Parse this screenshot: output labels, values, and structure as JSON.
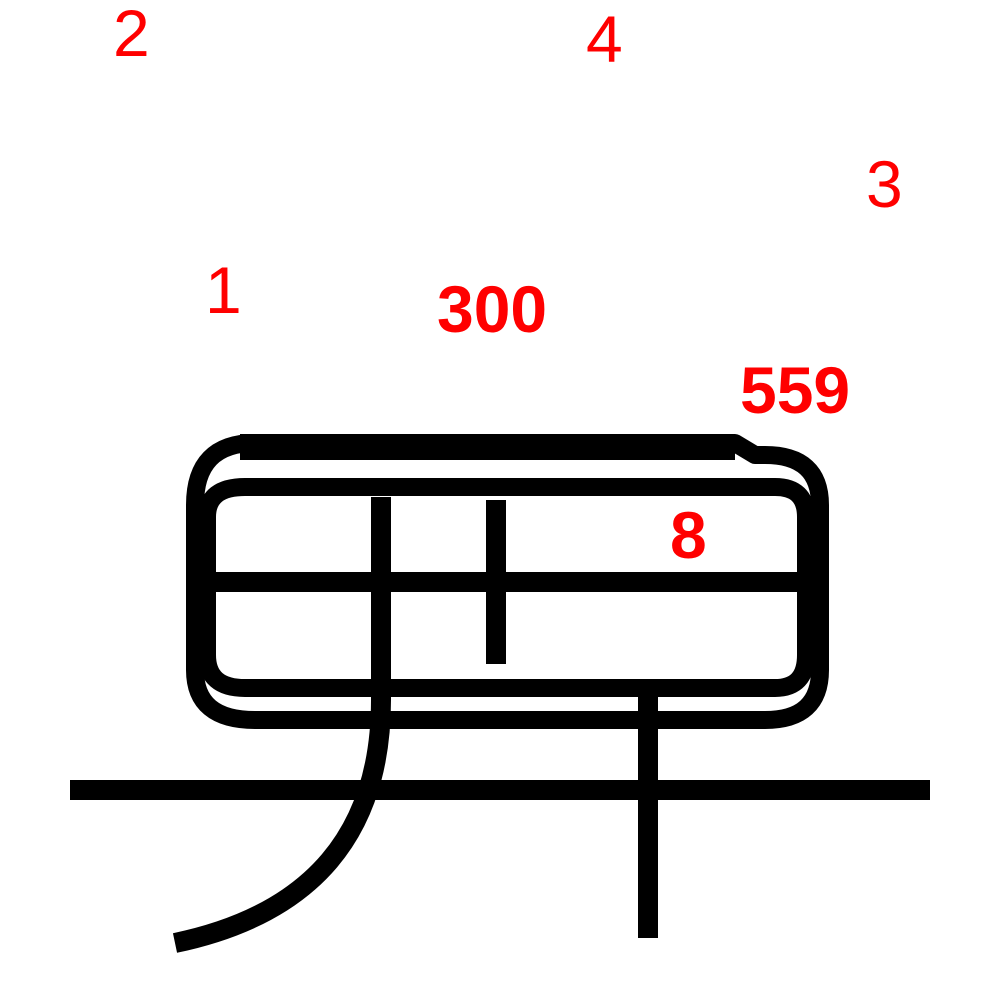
{
  "diagram": {
    "stroke_color": "#000000",
    "label_color": "#ff0000",
    "labels": {
      "l1": "1",
      "l2": "2",
      "l3": "3",
      "l4": "4",
      "cluster_1": "300",
      "cluster_2": "559",
      "cluster_3": "8"
    }
  }
}
